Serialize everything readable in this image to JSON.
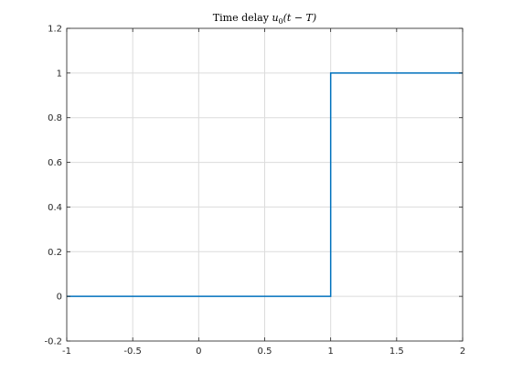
{
  "chart_data": {
    "type": "line",
    "title": "Time delay u0(t − T)",
    "title_parts": {
      "prefix": "Time delay ",
      "func": "u",
      "subscript": "0",
      "args": "(t − T)"
    },
    "xlabel": "",
    "ylabel": "",
    "xlim": [
      -1,
      2
    ],
    "ylim": [
      -0.2,
      1.2
    ],
    "grid": true,
    "x_ticks": [
      -1,
      -0.5,
      0,
      0.5,
      1,
      1.5,
      2
    ],
    "x_tick_labels": [
      "-1",
      "-0.5",
      "0",
      "0.5",
      "1",
      "1.5",
      "2"
    ],
    "y_ticks": [
      -0.2,
      0,
      0.2,
      0.4,
      0.6,
      0.8,
      1,
      1.2
    ],
    "y_tick_labels": [
      "-0.2",
      "0",
      "0.2",
      "0.4",
      "0.6",
      "0.8",
      "1",
      "1.2"
    ],
    "series": [
      {
        "name": "u0(t-T)",
        "color": "#0072bd",
        "x": [
          -1,
          1,
          1,
          2
        ],
        "y": [
          0,
          0,
          1,
          1
        ]
      }
    ]
  }
}
